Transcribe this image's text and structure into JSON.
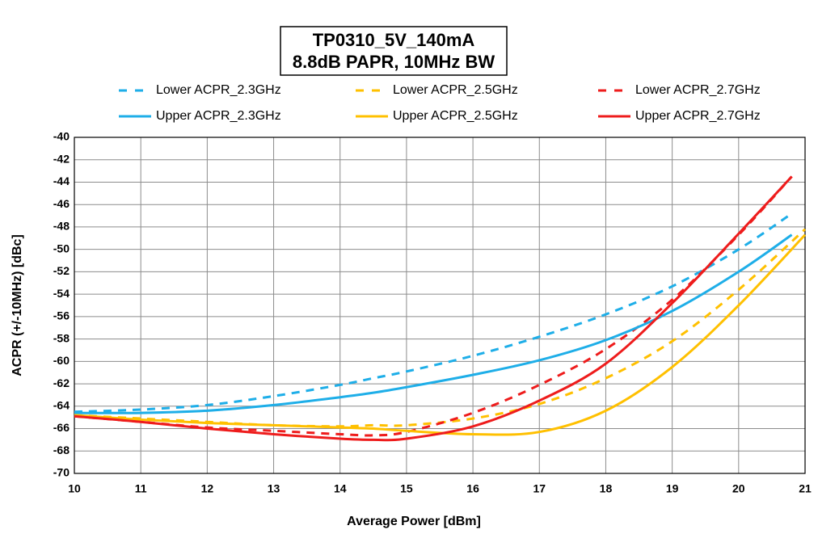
{
  "chart_data": {
    "type": "line",
    "title": [
      "TP0310_5V_140mA",
      "8.8dB PAPR, 10MHz BW"
    ],
    "x_label": "Average Power [dBm]",
    "y_label": "ACPR (+/-10MHz) [dBc]",
    "xlim": [
      10,
      21
    ],
    "xticks": [
      10,
      11,
      12,
      13,
      14,
      15,
      16,
      17,
      18,
      19,
      20,
      21
    ],
    "ylim": [
      -70,
      -40
    ],
    "yticks": [
      -40,
      -42,
      -44,
      -46,
      -48,
      -50,
      -52,
      -54,
      -56,
      -58,
      -60,
      -62,
      -64,
      -66,
      -68,
      -70
    ],
    "grid": true,
    "legend": "top",
    "series": [
      {
        "name": "Lower ACPR_2.3GHz",
        "color": "#1eaee8",
        "dashed": true,
        "x": [
          10,
          11,
          12,
          13,
          14,
          14.5,
          15,
          16,
          17,
          18,
          19,
          20,
          20.8
        ],
        "values": [
          -64.5,
          -64.3,
          -63.9,
          -63.1,
          -62.1,
          -61.5,
          -60.9,
          -59.5,
          -57.8,
          -55.8,
          -53.3,
          -50.0,
          -46.8
        ]
      },
      {
        "name": "Lower ACPR_2.5GHz",
        "color": "#ffc000",
        "dashed": true,
        "x": [
          10,
          11,
          12,
          13,
          14,
          14.5,
          15,
          16,
          17,
          18,
          19,
          20,
          21
        ],
        "values": [
          -64.8,
          -65.1,
          -65.4,
          -65.7,
          -65.8,
          -65.7,
          -65.7,
          -65.1,
          -63.8,
          -61.5,
          -58.2,
          -53.6,
          -48.2
        ]
      },
      {
        "name": "Lower ACPR_2.7GHz",
        "color": "#ee1c1c",
        "dashed": true,
        "x": [
          10,
          11,
          12,
          13,
          14,
          14.5,
          15,
          16,
          17,
          18,
          19,
          20,
          20.8
        ],
        "values": [
          -64.9,
          -65.4,
          -65.9,
          -66.2,
          -66.5,
          -66.6,
          -66.3,
          -64.6,
          -62.1,
          -58.9,
          -54.5,
          -48.7,
          -43.5
        ]
      },
      {
        "name": "Upper ACPR_2.3GHz",
        "color": "#1eaee8",
        "dashed": false,
        "x": [
          10,
          11,
          12,
          13,
          14,
          14.5,
          15,
          16,
          17,
          18,
          19,
          20,
          20.8
        ],
        "values": [
          -64.6,
          -64.6,
          -64.4,
          -63.9,
          -63.2,
          -62.8,
          -62.3,
          -61.2,
          -59.9,
          -58.1,
          -55.5,
          -52.0,
          -48.7
        ]
      },
      {
        "name": "Upper ACPR_2.5GHz",
        "color": "#ffc000",
        "dashed": false,
        "x": [
          10,
          11,
          12,
          13,
          14,
          14.5,
          15,
          16,
          17,
          18,
          19,
          20,
          21
        ],
        "values": [
          -64.8,
          -65.2,
          -65.5,
          -65.7,
          -65.9,
          -66.0,
          -66.2,
          -66.5,
          -66.3,
          -64.4,
          -60.5,
          -55.0,
          -48.7
        ]
      },
      {
        "name": "Upper ACPR_2.7GHz",
        "color": "#ee1c1c",
        "dashed": false,
        "x": [
          10,
          11,
          12,
          13,
          14,
          14.5,
          15,
          16,
          17,
          18,
          19,
          20,
          20.8
        ],
        "values": [
          -64.9,
          -65.4,
          -66.0,
          -66.5,
          -66.9,
          -67.0,
          -66.9,
          -65.8,
          -63.5,
          -60.2,
          -54.8,
          -48.6,
          -43.5
        ]
      }
    ]
  }
}
